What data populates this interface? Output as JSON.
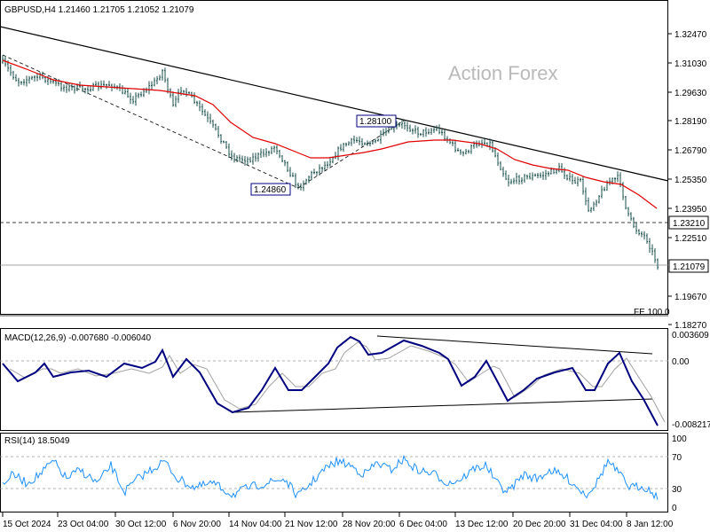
{
  "main_panel": {
    "title": "GBPUSD,H4  1.21460 1.21705 1.21052 1.21079",
    "watermark": "Action Forex",
    "price_ticks": [
      "1.32470",
      "1.31030",
      "1.29630",
      "1.28190",
      "1.26790",
      "1.25350",
      "1.23950",
      "1.22510",
      "1.19670",
      "1.18270"
    ],
    "current_price_label": "1.21079",
    "level_label": "1.23210",
    "swing_low_label": "1.24860",
    "swing_high_label": "1.28100",
    "fe_label": "FE 100.0"
  },
  "macd_panel": {
    "title": "MACD(12,26,9) -0.007680 -0.006040",
    "ticks": [
      "0.003609",
      "0.00",
      "-0.008217"
    ]
  },
  "rsi_panel": {
    "title": "RSI(14) 18.5049",
    "ticks": [
      "100",
      "70",
      "30",
      "0"
    ]
  },
  "time_axis": {
    "labels": [
      "15 Oct 2024",
      "23 Oct 04:00",
      "30 Oct 12:00",
      "6 Nov 20:00",
      "14 Nov 04:00",
      "21 Nov 12:00",
      "28 Nov 20:00",
      "6 Dec 04:00",
      "13 Dec 12:00",
      "20 Dec 20:00",
      "31 Dec 04:00",
      "8 Jan 12:00"
    ]
  },
  "colors": {
    "candles": "#1b4f4f",
    "moving_average": "#e00000",
    "trendline": "#000000",
    "macd_line": "#000080",
    "signal_line": "#a0a0a0",
    "rsi_line": "#1e90ff",
    "level_line": "#000000"
  },
  "chart_data": {
    "type": "line",
    "symbol": "GBPUSD",
    "timeframe": "H4",
    "ohlc_latest": {
      "open": 1.2146,
      "high": 1.21705,
      "low": 1.21052,
      "close": 1.21079
    },
    "price_range": [
      1.1827,
      1.3247
    ],
    "price_points": [
      {
        "x": "15 Oct 2024",
        "close": 1.307
      },
      {
        "x": "23 Oct 04:00",
        "close": 1.298
      },
      {
        "x": "30 Oct 12:00",
        "close": 1.296
      },
      {
        "x": "6 Nov 20:00",
        "close": 1.296
      },
      {
        "x": "14 Nov 04:00",
        "close": 1.269
      },
      {
        "x": "21 Nov 12:00",
        "close": 1.253
      },
      {
        "x": "28 Nov 20:00",
        "close": 1.272
      },
      {
        "x": "6 Dec 04:00",
        "close": 1.278
      },
      {
        "x": "13 Dec 12:00",
        "close": 1.27
      },
      {
        "x": "20 Dec 20:00",
        "close": 1.255
      },
      {
        "x": "31 Dec 04:00",
        "close": 1.253
      },
      {
        "x": "8 Jan 12:00",
        "close": 1.2108
      }
    ],
    "swing_low": {
      "x": "21 Nov 12:00",
      "value": 1.2486
    },
    "swing_high": {
      "x": "6 Dec 04:00",
      "value": 1.281
    },
    "horizontal_level": 1.2321,
    "fe_level": 1.188,
    "macd": {
      "macd": -0.00768,
      "signal": -0.00604,
      "range": [
        -0.008217,
        0.003609
      ]
    },
    "rsi": {
      "value": 18.5049,
      "levels": [
        70,
        30
      ],
      "range": [
        0,
        100
      ]
    }
  }
}
